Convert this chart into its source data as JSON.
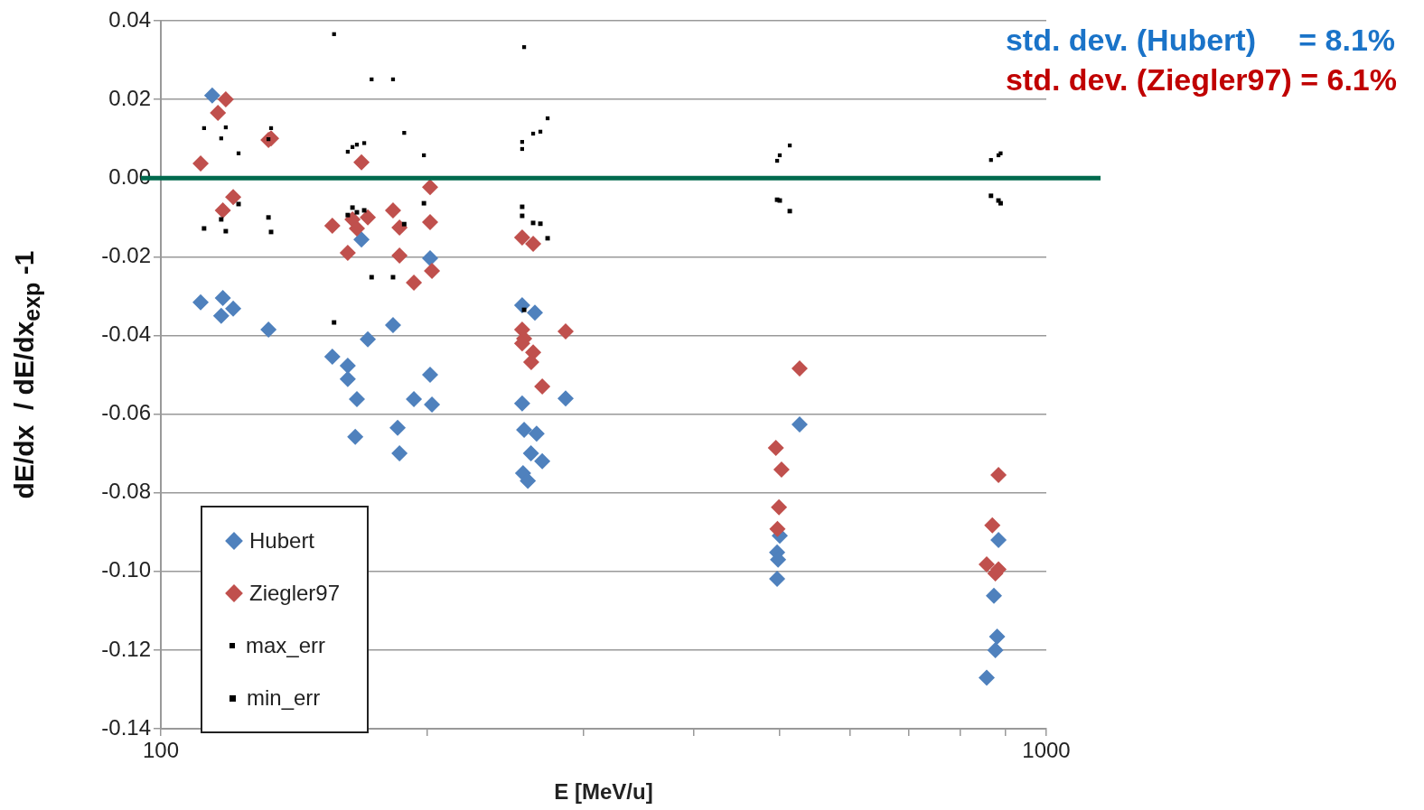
{
  "chart_data": {
    "type": "scatter",
    "xlabel": "E [MeV/u]",
    "ylabel": "dE/dx  / dE/dx$_{exp}$ -1",
    "log": "x",
    "xlim": [
      100,
      1000
    ],
    "ylim": [
      -0.14,
      0.04
    ],
    "xticks": [
      100,
      {
        "value": 200,
        "label": null
      },
      {
        "value": 300,
        "label": null
      },
      {
        "value": 400,
        "label": null
      },
      {
        "value": 500,
        "label": null
      },
      {
        "value": 600,
        "label": null
      },
      {
        "value": 700,
        "label": null
      },
      {
        "value": 800,
        "label": null
      },
      {
        "value": 900,
        "label": null
      },
      1000
    ],
    "yticks": [
      0.04,
      0.02,
      {
        "value": 0,
        "label": "0.00"
      },
      -0.02,
      -0.04,
      -0.06,
      -0.08,
      {
        "value": -0.1,
        "label": "-0.10"
      },
      -0.12,
      -0.14
    ],
    "grid": "y",
    "legend": "bottom left",
    "ref_lines": [
      {
        "axis": "y",
        "value": 0,
        "label": null,
        "color": "#006a4e"
      }
    ],
    "annotations": [
      "std. dev. (Hubert)     = 8.1%",
      "std. dev. (Ziegler97) = 6.1%"
    ],
    "series": [
      {
        "name": "Hubert",
        "color": "#4f81bd",
        "marker": "diamond",
        "x": [
          114.3,
          110.9,
          117.5,
          117.0,
          120.7,
          132.3,
          156.2,
          162.6,
          162.6,
          166.5,
          165.8,
          168.5,
          171.3,
          182.9,
          185.1,
          186.0,
          193.1,
          201.4,
          202.4,
          201.4,
          255.9,
          264.5,
          255.9,
          257.2,
          265.7,
          261.8,
          269.6,
          256.5,
          259.7,
          286.5,
          526.5,
          496.6,
          497.8,
          500.0,
          496.6,
          883.0,
          872.6,
          880.0,
          876.0,
          856.4
        ],
        "values": [
          0.021,
          -0.0316,
          -0.0305,
          -0.035,
          -0.0332,
          -0.0385,
          -0.0454,
          -0.0477,
          -0.0511,
          -0.0562,
          -0.0658,
          -0.0156,
          -0.041,
          -0.0374,
          -0.0635,
          -0.07,
          -0.0562,
          -0.05,
          -0.0576,
          -0.0204,
          -0.0323,
          -0.0342,
          -0.0573,
          -0.064,
          -0.065,
          -0.07,
          -0.072,
          -0.075,
          -0.077,
          -0.056,
          -0.0626,
          -0.0952,
          -0.097,
          -0.0909,
          -0.1019,
          -0.092,
          -0.1062,
          -0.1166,
          -0.12,
          -0.127
        ]
      },
      {
        "name": "Ziegler97",
        "color": "#c0504d",
        "marker": "diamond",
        "x": [
          110.9,
          116.0,
          118.4,
          117.5,
          120.7,
          132.3,
          133.2,
          156.2,
          162.6,
          164.6,
          166.5,
          168.5,
          171.3,
          182.9,
          186.0,
          186.0,
          193.1,
          201.4,
          201.4,
          202.4,
          255.9,
          263.3,
          255.9,
          257.2,
          255.9,
          263.3,
          262.0,
          269.6,
          286.5,
          526.5,
          495.0,
          502.3,
          499.0,
          497.0,
          883.0,
          869.0,
          856.4,
          876.0,
          883.0
        ],
        "values": [
          0.0037,
          0.0166,
          0.02,
          -0.0082,
          -0.0048,
          0.0097,
          0.0101,
          -0.0121,
          -0.019,
          -0.0105,
          -0.0128,
          0.004,
          -0.01,
          -0.0082,
          -0.0126,
          -0.0197,
          -0.0266,
          -0.0023,
          -0.0112,
          -0.0236,
          -0.0151,
          -0.0167,
          -0.0385,
          -0.0408,
          -0.042,
          -0.0443,
          -0.0468,
          -0.053,
          -0.039,
          -0.0484,
          -0.0686,
          -0.0741,
          -0.0837,
          -0.0892,
          -0.0755,
          -0.0883,
          -0.0982,
          -0.1005,
          -0.0995
        ]
      },
      {
        "name": "max_err",
        "color": "#000000",
        "marker": "square",
        "x": [
          156.9,
          173.0,
          182.9,
          111.9,
          118.4,
          117.0,
          133.2,
          132.3,
          122.4,
          164.6,
          166.5,
          169.7,
          162.6,
          188.3,
          198.2,
          257.2,
          273.4,
          263.3,
          268.3,
          255.9,
          255.9,
          500.0,
          496.6,
          513.2,
          866.0,
          883.0,
          888.0
        ],
        "values": [
          0.0366,
          0.0251,
          0.0251,
          0.0127,
          0.0129,
          0.0101,
          0.0127,
          0.0099,
          0.0063,
          0.0079,
          0.0085,
          0.0089,
          0.0067,
          0.0115,
          0.0058,
          0.0333,
          0.0152,
          0.0113,
          0.0118,
          0.0092,
          0.0074,
          0.0058,
          0.0044,
          0.0083,
          0.0046,
          0.0058,
          0.0063
        ]
      },
      {
        "name": "min_err",
        "color": "#000000",
        "marker": "square",
        "x": [
          156.9,
          173.0,
          182.9,
          111.9,
          118.4,
          117.0,
          133.2,
          132.3,
          122.4,
          164.6,
          166.5,
          169.7,
          162.6,
          188.3,
          198.2,
          257.2,
          273.4,
          263.3,
          268.3,
          255.9,
          255.9,
          500.0,
          496.6,
          513.2,
          866.0,
          883.0,
          888.0
        ],
        "values": [
          -0.0367,
          -0.0252,
          -0.0252,
          -0.0128,
          -0.0135,
          -0.0105,
          -0.0137,
          -0.01,
          -0.0066,
          -0.0075,
          -0.0087,
          -0.0082,
          -0.0094,
          -0.0117,
          -0.0064,
          -0.0335,
          -0.0153,
          -0.0114,
          -0.0116,
          -0.0073,
          -0.0096,
          -0.0057,
          -0.0055,
          -0.0084,
          -0.0045,
          -0.0057,
          -0.0064
        ]
      }
    ]
  }
}
